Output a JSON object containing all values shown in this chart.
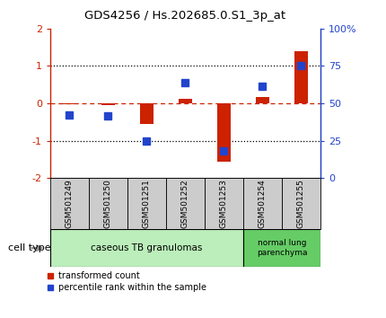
{
  "title": "GDS4256 / Hs.202685.0.S1_3p_at",
  "samples": [
    "GSM501249",
    "GSM501250",
    "GSM501251",
    "GSM501252",
    "GSM501253",
    "GSM501254",
    "GSM501255"
  ],
  "transformed_count": [
    -0.03,
    -0.05,
    -0.55,
    0.12,
    -1.55,
    0.18,
    1.4
  ],
  "percentile_rank": [
    -0.3,
    -0.33,
    -1.02,
    0.55,
    -1.28,
    0.45,
    1.02
  ],
  "red_color": "#cc2200",
  "blue_color": "#2244cc",
  "ylim_left": [
    -2,
    2
  ],
  "ylim_right": [
    0,
    100
  ],
  "yticks_left": [
    -2,
    -1,
    0,
    1,
    2
  ],
  "yticks_right": [
    0,
    25,
    50,
    75,
    100
  ],
  "ytick_labels_right": [
    "0",
    "25",
    "50",
    "75",
    "100%"
  ],
  "group1_color": "#bbeebb",
  "group2_color": "#66cc66",
  "gray_box": "#cccccc",
  "bar_width": 0.35,
  "marker_size": 6
}
